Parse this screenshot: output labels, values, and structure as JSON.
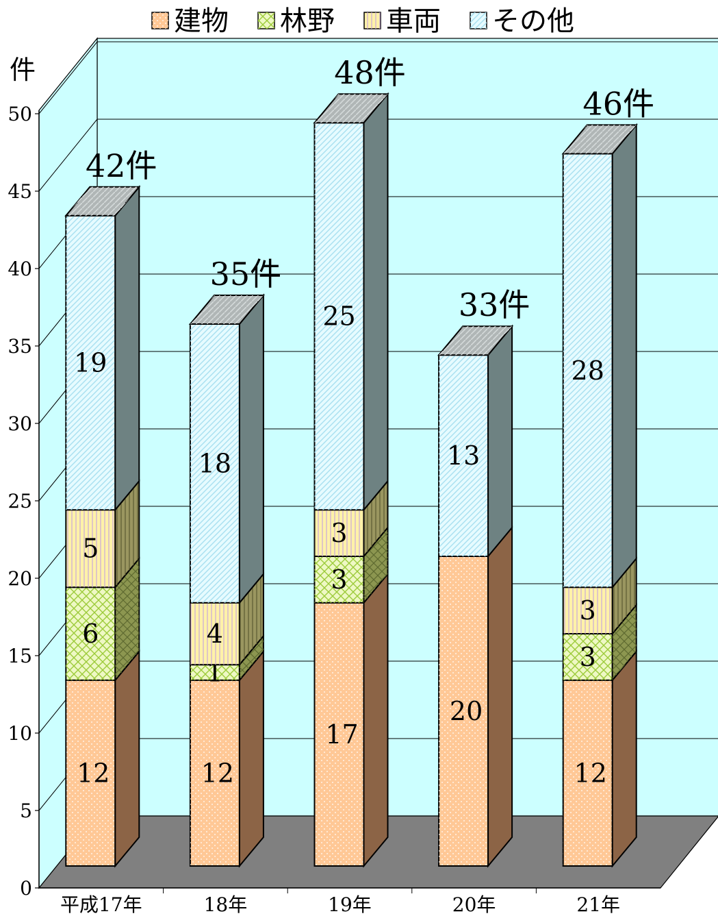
{
  "chart_data": {
    "type": "bar",
    "stacked": true,
    "three_d": true,
    "categories": [
      "平成17年",
      "18年",
      "19年",
      "20年",
      "21年"
    ],
    "series": [
      {
        "name": "建物",
        "values": [
          12,
          12,
          17,
          20,
          12
        ],
        "color": "#FFC896",
        "side_color": "#8C6446"
      },
      {
        "name": "林野",
        "values": [
          6,
          1,
          3,
          0,
          3
        ],
        "color": "#EEF8C4",
        "side_color": "#8C9650"
      },
      {
        "name": "車両",
        "values": [
          5,
          4,
          3,
          0,
          3
        ],
        "color": "#FFF2A8",
        "side_color": "#9A9660"
      },
      {
        "name": "その他",
        "values": [
          19,
          18,
          25,
          13,
          28
        ],
        "color": "#E6FBFF",
        "side_color": "#6E8282"
      }
    ],
    "totals": [
      "42件",
      "35件",
      "48件",
      "33件",
      "46件"
    ],
    "y_unit": "件",
    "ylim": [
      0,
      50
    ],
    "y_ticks": [
      "0",
      "5",
      "10",
      "15",
      "20",
      "25",
      "30",
      "35",
      "40",
      "45",
      "50"
    ],
    "legend_position": "top",
    "grid": true,
    "colors": {
      "wall": "#CCFFFF",
      "floor": "#808080",
      "top_cap": "#B0B6B6"
    }
  }
}
